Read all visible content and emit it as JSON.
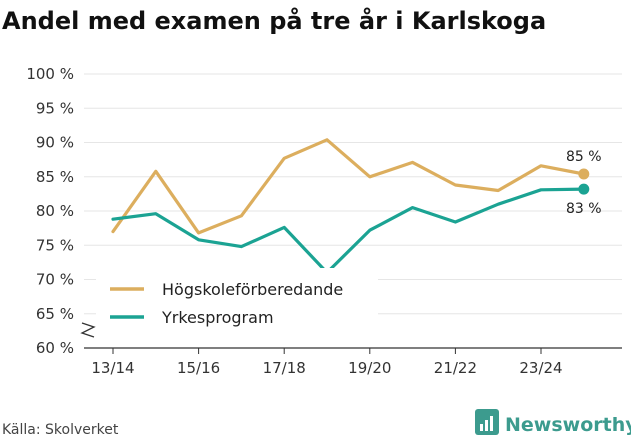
{
  "chart_data": {
    "type": "line",
    "title": "Andel med examen på tre år i Karlskoga",
    "xlabel": "",
    "ylabel": "",
    "x": [
      "13/14",
      "14/15",
      "15/16",
      "16/17",
      "17/18",
      "18/19",
      "19/20",
      "20/21",
      "21/22",
      "22/23",
      "23/24",
      "24/25"
    ],
    "x_tick_labels": [
      "13/14",
      "15/16",
      "17/18",
      "19/20",
      "21/22",
      "23/24"
    ],
    "y_ticks": [
      60,
      65,
      70,
      75,
      80,
      85,
      90,
      95,
      100
    ],
    "y_tick_labels": [
      "60 %",
      "65 %",
      "70 %",
      "75 %",
      "80 %",
      "85 %",
      "90 %",
      "95 %",
      "100 %"
    ],
    "ylim": [
      60,
      100
    ],
    "axis_break": true,
    "grid": "horizontal",
    "legend_position": "lower-left",
    "series": [
      {
        "name": "Högskoleförberedande",
        "color": "#dcae5e",
        "values": [
          77.0,
          85.8,
          76.8,
          79.3,
          87.7,
          90.4,
          85.0,
          87.1,
          83.8,
          83.0,
          86.6,
          85.4
        ],
        "end_label": "85 %"
      },
      {
        "name": "Yrkesprogram",
        "color": "#1ba393",
        "values": [
          78.8,
          79.6,
          75.8,
          74.8,
          77.6,
          71.0,
          77.2,
          80.5,
          78.4,
          81.0,
          83.1,
          83.2
        ],
        "end_label": "83 %"
      }
    ]
  },
  "source": "Källa: Skolverket",
  "brand": "Newsworthy",
  "colors": {
    "grid": "#e6e6e6",
    "axis": "#333333",
    "brand": "#3c9b8e"
  }
}
